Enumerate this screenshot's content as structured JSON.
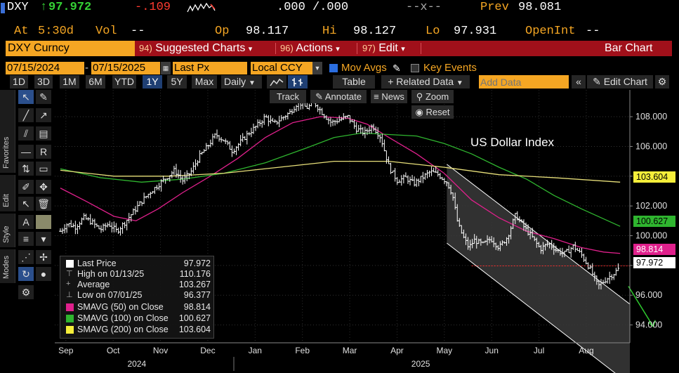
{
  "quote": {
    "ticker": "DXY",
    "arrow": "↑",
    "last": "97.972",
    "change": "-.109",
    "bid_ask": ".000 /.000",
    "size": "--x--",
    "prev_label": "Prev",
    "prev": "98.081",
    "at_label": "At",
    "at_time": "5:30d",
    "vol_label": "Vol",
    "vol": "--",
    "op_label": "Op",
    "open": "98.117",
    "hi_label": "Hi",
    "high": "98.127",
    "lo_label": "Lo",
    "low": "97.931",
    "oi_label": "OpenInt",
    "open_int": "--"
  },
  "function_bar": {
    "security": "DXY Curncy",
    "items": [
      {
        "num": "94)",
        "label": "Suggested Charts",
        "caret": "▾"
      },
      {
        "num": "96)",
        "label": "Actions",
        "caret": "▾"
      },
      {
        "num": "97)",
        "label": "Edit",
        "caret": "▾"
      }
    ],
    "chart_type": "Bar Chart"
  },
  "options": {
    "start_date": "07/15/2024",
    "dash": "-",
    "end_date": "07/15/2025",
    "price_field": "Last Px",
    "currency": "Local CCY",
    "mov_avgs": "Mov Avgs",
    "key_events": "Key Events"
  },
  "toolbar": {
    "periods": [
      "1D",
      "3D",
      "1M",
      "6M",
      "YTD",
      "1Y",
      "5Y",
      "Max"
    ],
    "active_period": "1Y",
    "frequency": "Daily",
    "track": "Track",
    "annotate": "Annotate",
    "news": "News",
    "zoom": "Zoom",
    "reset": "Reset",
    "table": "Table",
    "related": "Related Data",
    "add_data_placeholder": "Add Data",
    "edit_chart": "Edit Chart"
  },
  "side_tabs": {
    "favorites": "Favorites",
    "edit": "Edit",
    "style": "Style",
    "modes": "Modes"
  },
  "chart_title": "US Dollar Index",
  "legend": {
    "last_price_label": "Last Price",
    "last_price": "97.972",
    "high_label": "High on 01/13/25",
    "high": "110.176",
    "avg_label": "Average",
    "avg": "103.267",
    "low_label": "Low on 07/01/25",
    "low": "96.377",
    "sma50_label": "SMAVG (50)  on Close",
    "sma50": "98.814",
    "sma100_label": "SMAVG (100)  on Close",
    "sma100": "100.627",
    "sma200_label": "SMAVG (200)  on Close",
    "sma200": "103.604"
  },
  "price_tags": {
    "sma200": "103.604",
    "sma100": "100.627",
    "sma50": "98.814",
    "last": "97.972"
  },
  "colors": {
    "amber": "#f5a623",
    "sma50": "#e0208c",
    "sma100": "#2fb52f",
    "sma200": "#e8e07a",
    "last": "#ffffff",
    "channel_fill": "#3a3a3a",
    "arrow": "#2ec82e",
    "func_bar": "#a0101a"
  },
  "chart_data": {
    "type": "bar",
    "title": "US Dollar Index",
    "y_ticks": [
      "108.000",
      "106.000",
      "104.000",
      "102.000",
      "100.000",
      "98.000",
      "96.000",
      "94.000"
    ],
    "y_tick_values": [
      108,
      106,
      104,
      102,
      100,
      98,
      96,
      94
    ],
    "ylim": [
      92.8,
      109.8
    ],
    "month_labels": [
      "Sep",
      "Oct",
      "Nov",
      "Dec",
      "Jan",
      "Feb",
      "Mar",
      "Apr",
      "May",
      "Jun",
      "Jul",
      "Aug"
    ],
    "year_labels": [
      "2024",
      "2025"
    ],
    "x_range_months": [
      0,
      13.1
    ],
    "close_path": [
      [
        0.05,
        100.3
      ],
      [
        0.3,
        100.8
      ],
      [
        0.6,
        100.6
      ],
      [
        0.9,
        101.2
      ],
      [
        1.2,
        100.9
      ],
      [
        1.5,
        100.4
      ],
      [
        1.8,
        100.8
      ],
      [
        2.1,
        100.3
      ],
      [
        2.4,
        100.9
      ],
      [
        2.7,
        101.6
      ],
      [
        3.0,
        102.3
      ],
      [
        3.3,
        102.9
      ],
      [
        3.6,
        103.4
      ],
      [
        3.9,
        103.9
      ],
      [
        4.2,
        104.4
      ],
      [
        4.5,
        103.7
      ],
      [
        4.8,
        104.3
      ],
      [
        5.1,
        105.3
      ],
      [
        5.4,
        106.0
      ],
      [
        5.7,
        106.8
      ],
      [
        6.0,
        106.4
      ],
      [
        6.3,
        105.7
      ],
      [
        6.6,
        106.3
      ],
      [
        6.9,
        106.9
      ],
      [
        7.2,
        107.4
      ],
      [
        7.5,
        108.0
      ],
      [
        7.8,
        107.5
      ],
      [
        8.1,
        107.9
      ],
      [
        8.4,
        108.3
      ],
      [
        8.7,
        109.0
      ],
      [
        9.0,
        108.6
      ],
      [
        9.3,
        108.9
      ],
      [
        9.6,
        108.2
      ],
      [
        9.9,
        107.6
      ],
      [
        10.2,
        107.8
      ],
      [
        10.5,
        108.0
      ],
      [
        10.8,
        107.2
      ],
      [
        11.1,
        106.9
      ],
      [
        11.4,
        107.4
      ],
      [
        11.7,
        106.6
      ],
      [
        12.0,
        104.6
      ],
      [
        12.3,
        103.7
      ],
      [
        12.6,
        103.9
      ],
      [
        12.9,
        103.5
      ],
      [
        13.2,
        103.9
      ],
      [
        13.5,
        104.3
      ],
      [
        13.8,
        104.1
      ],
      [
        14.1,
        103.6
      ],
      [
        14.3,
        102.8
      ],
      [
        14.5,
        100.8
      ],
      [
        14.7,
        99.9
      ],
      [
        14.9,
        99.2
      ],
      [
        15.1,
        99.7
      ],
      [
        15.4,
        99.4
      ],
      [
        15.7,
        99.8
      ],
      [
        16.0,
        99.2
      ],
      [
        16.3,
        99.9
      ],
      [
        16.6,
        101.4
      ],
      [
        16.9,
        100.6
      ],
      [
        17.2,
        99.9
      ],
      [
        17.5,
        99.1
      ],
      [
        17.8,
        99.5
      ],
      [
        18.1,
        99.0
      ],
      [
        18.4,
        98.8
      ],
      [
        18.7,
        99.3
      ],
      [
        19.0,
        98.7
      ],
      [
        19.3,
        97.8
      ],
      [
        19.6,
        96.6
      ],
      [
        19.9,
        97.1
      ],
      [
        20.2,
        97.5
      ],
      [
        20.4,
        97.9
      ]
    ],
    "series": [
      {
        "name": "SMAVG (50)",
        "values": [
          [
            0.05,
            103.2
          ],
          [
            1.0,
            102.3
          ],
          [
            2.0,
            101.3
          ],
          [
            2.8,
            101.0
          ],
          [
            3.6,
            101.8
          ],
          [
            4.5,
            102.9
          ],
          [
            5.5,
            104.0
          ],
          [
            6.5,
            105.2
          ],
          [
            7.5,
            106.6
          ],
          [
            8.5,
            107.6
          ],
          [
            9.5,
            108.0
          ],
          [
            10.5,
            107.9
          ],
          [
            11.2,
            107.5
          ],
          [
            12.0,
            106.6
          ],
          [
            13.0,
            105.5
          ],
          [
            14.0,
            104.2
          ],
          [
            15.0,
            102.4
          ],
          [
            16.0,
            101.2
          ],
          [
            17.0,
            100.3
          ],
          [
            18.0,
            99.8
          ],
          [
            19.0,
            99.2
          ],
          [
            19.8,
            98.9
          ],
          [
            20.4,
            98.81
          ]
        ]
      },
      {
        "name": "SMAVG (100)",
        "values": [
          [
            0.05,
            104.5
          ],
          [
            1.5,
            103.9
          ],
          [
            3.0,
            103.6
          ],
          [
            4.5,
            103.8
          ],
          [
            6.0,
            104.2
          ],
          [
            7.5,
            104.9
          ],
          [
            9.0,
            105.9
          ],
          [
            10.0,
            106.6
          ],
          [
            11.0,
            106.9
          ],
          [
            12.0,
            106.8
          ],
          [
            13.0,
            106.7
          ],
          [
            14.0,
            106.2
          ],
          [
            15.0,
            105.5
          ],
          [
            16.0,
            104.6
          ],
          [
            17.0,
            103.8
          ],
          [
            18.0,
            102.7
          ],
          [
            19.0,
            101.8
          ],
          [
            20.4,
            100.63
          ]
        ]
      },
      {
        "name": "SMAVG (200)",
        "values": [
          [
            0.05,
            104.4
          ],
          [
            2.0,
            104.0
          ],
          [
            4.0,
            104.0
          ],
          [
            6.0,
            104.2
          ],
          [
            8.0,
            104.6
          ],
          [
            10.0,
            105.0
          ],
          [
            12.0,
            105.0
          ],
          [
            14.0,
            104.6
          ],
          [
            16.0,
            104.1
          ],
          [
            18.0,
            103.9
          ],
          [
            20.4,
            103.6
          ]
        ]
      }
    ],
    "last_price": 97.972,
    "grid": true,
    "legend_position": "bottom-left"
  }
}
